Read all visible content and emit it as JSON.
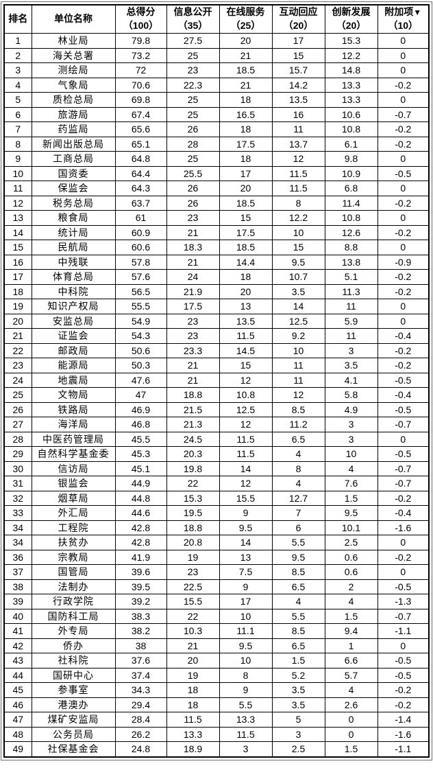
{
  "colors": {
    "outer_border": "#6b6b6b",
    "inner_border": "#000000",
    "text": "#000000",
    "background": "#ffffff"
  },
  "table": {
    "sort_indicator": "▼",
    "column_keys": [
      "rank",
      "name",
      "total_score",
      "info_disclosure",
      "online_service",
      "interaction_response",
      "innovation_development",
      "additional_items"
    ],
    "columns": [
      {
        "key": "rank",
        "line1": "排名",
        "line2": ""
      },
      {
        "key": "name",
        "line1": "单位名称",
        "line2": ""
      },
      {
        "key": "total_score",
        "line1": "总得分",
        "line2": "（100）"
      },
      {
        "key": "info_disclosure",
        "line1": "信息公开",
        "line2": "（35）"
      },
      {
        "key": "online_service",
        "line1": "在线服务",
        "line2": "（25）"
      },
      {
        "key": "interaction_response",
        "line1": "互动回应",
        "line2": "（20）"
      },
      {
        "key": "innovation_development",
        "line1": "创新发展",
        "line2": "（20）"
      },
      {
        "key": "additional_items",
        "line1": "附加项",
        "line2": "（10）"
      }
    ],
    "rows": [
      [
        "1",
        "林业局",
        "79.8",
        "27.5",
        "20",
        "17",
        "15.3",
        "0"
      ],
      [
        "2",
        "海关总署",
        "73.2",
        "25",
        "21",
        "15",
        "12.2",
        "0"
      ],
      [
        "3",
        "测绘局",
        "72",
        "23",
        "18.5",
        "15.7",
        "14.8",
        "0"
      ],
      [
        "4",
        "气象局",
        "70.6",
        "22.3",
        "21",
        "14.2",
        "13.3",
        "-0.2"
      ],
      [
        "5",
        "质检总局",
        "69.8",
        "25",
        "18",
        "13.5",
        "13.3",
        "0"
      ],
      [
        "6",
        "旅游局",
        "67.4",
        "25",
        "16.5",
        "16",
        "10.6",
        "-0.7"
      ],
      [
        "7",
        "药监局",
        "65.6",
        "26",
        "18",
        "11",
        "10.8",
        "-0.2"
      ],
      [
        "8",
        "新闻出版总局",
        "65.1",
        "28",
        "17.5",
        "13.7",
        "6.1",
        "-0.2"
      ],
      [
        "9",
        "工商总局",
        "64.8",
        "25",
        "18",
        "12",
        "9.8",
        "0"
      ],
      [
        "10",
        "国资委",
        "64.4",
        "25.5",
        "17",
        "11.5",
        "10.9",
        "-0.5"
      ],
      [
        "11",
        "保监会",
        "64.3",
        "26",
        "20",
        "11.5",
        "6.8",
        "0"
      ],
      [
        "12",
        "税务总局",
        "63.7",
        "26",
        "18.5",
        "8",
        "11.4",
        "-0.2"
      ],
      [
        "13",
        "粮食局",
        "61",
        "23",
        "15",
        "12.2",
        "10.8",
        "0"
      ],
      [
        "14",
        "统计局",
        "60.9",
        "21",
        "17.5",
        "10",
        "12.6",
        "-0.2"
      ],
      [
        "15",
        "民航局",
        "60.6",
        "18.3",
        "18.5",
        "15",
        "8.8",
        "0"
      ],
      [
        "16",
        "中残联",
        "57.8",
        "21",
        "14.4",
        "9.5",
        "13.8",
        "-0.9"
      ],
      [
        "17",
        "体育总局",
        "57.6",
        "24",
        "18",
        "10.7",
        "5.1",
        "-0.2"
      ],
      [
        "18",
        "中科院",
        "56.5",
        "21.9",
        "20",
        "3.5",
        "11.3",
        "-0.2"
      ],
      [
        "19",
        "知识产权局",
        "55.5",
        "17.5",
        "13",
        "14",
        "11",
        "0"
      ],
      [
        "20",
        "安监总局",
        "54.9",
        "23",
        "13.5",
        "12.5",
        "5.9",
        "0"
      ],
      [
        "21",
        "证监会",
        "54.3",
        "23",
        "11.5",
        "9.2",
        "11",
        "-0.4"
      ],
      [
        "22",
        "邮政局",
        "50.6",
        "23.3",
        "14.5",
        "10",
        "3",
        "-0.2"
      ],
      [
        "23",
        "能源局",
        "50.3",
        "21",
        "15",
        "11",
        "3.5",
        "-0.2"
      ],
      [
        "24",
        "地震局",
        "47.6",
        "21",
        "12",
        "11",
        "4.1",
        "-0.5"
      ],
      [
        "25",
        "文物局",
        "47",
        "18.8",
        "10.8",
        "12",
        "5.8",
        "-0.4"
      ],
      [
        "26",
        "铁路局",
        "46.9",
        "21.5",
        "12.5",
        "8.5",
        "4.9",
        "-0.5"
      ],
      [
        "27",
        "海洋局",
        "46.8",
        "21.3",
        "12",
        "11.2",
        "3",
        "-0.7"
      ],
      [
        "28",
        "中医药管理局",
        "45.5",
        "24.5",
        "11.5",
        "6.5",
        "3",
        "0"
      ],
      [
        "29",
        "自然科学基金委",
        "45.3",
        "20.3",
        "11.5",
        "4",
        "10",
        "-0.5"
      ],
      [
        "30",
        "信访局",
        "45.1",
        "19.8",
        "14",
        "8",
        "4",
        "-0.7"
      ],
      [
        "31",
        "银监会",
        "44.9",
        "22",
        "12",
        "4",
        "7.6",
        "-0.7"
      ],
      [
        "32",
        "烟草局",
        "44.8",
        "15.3",
        "15.5",
        "12.7",
        "1.5",
        "-0.2"
      ],
      [
        "33",
        "外汇局",
        "44.6",
        "19.5",
        "9",
        "7",
        "9.5",
        "-0.4"
      ],
      [
        "34",
        "工程院",
        "42.8",
        "18.8",
        "9.5",
        "6",
        "10.1",
        "-1.6"
      ],
      [
        "34",
        "扶贫办",
        "42.8",
        "20.8",
        "14",
        "5.5",
        "2.5",
        "0"
      ],
      [
        "36",
        "宗教局",
        "41.9",
        "19",
        "13",
        "9.5",
        "0.6",
        "-0.2"
      ],
      [
        "37",
        "国管局",
        "39.6",
        "23",
        "7.5",
        "8.5",
        "0.6",
        "0"
      ],
      [
        "38",
        "法制办",
        "39.5",
        "22.5",
        "9",
        "6.5",
        "2",
        "-0.5"
      ],
      [
        "39",
        "行政学院",
        "39.2",
        "15.5",
        "17",
        "4",
        "4",
        "-1.3"
      ],
      [
        "40",
        "国防科工局",
        "38.3",
        "22",
        "10",
        "5.5",
        "1.5",
        "-0.7"
      ],
      [
        "41",
        "外专局",
        "38.2",
        "10.3",
        "11.1",
        "8.5",
        "9.4",
        "-1.1"
      ],
      [
        "42",
        "侨办",
        "38",
        "21",
        "9.5",
        "6.5",
        "1",
        "0"
      ],
      [
        "43",
        "社科院",
        "37.6",
        "20",
        "10",
        "1.5",
        "6.6",
        "-0.5"
      ],
      [
        "44",
        "国研中心",
        "37.4",
        "19",
        "8",
        "5.2",
        "5.7",
        "-0.5"
      ],
      [
        "45",
        "参事室",
        "34.3",
        "18",
        "9",
        "3.5",
        "4",
        "-0.2"
      ],
      [
        "46",
        "港澳办",
        "29.4",
        "18",
        "5.5",
        "3.5",
        "2.6",
        "-0.2"
      ],
      [
        "47",
        "煤矿安监局",
        "28.4",
        "11.5",
        "13.3",
        "5",
        "0",
        "-1.4"
      ],
      [
        "48",
        "公务员局",
        "26.2",
        "13.3",
        "11.5",
        "3",
        "0",
        "-1.6"
      ],
      [
        "49",
        "社保基金会",
        "24.8",
        "18.9",
        "3",
        "2.5",
        "1.5",
        "-1.1"
      ]
    ]
  }
}
